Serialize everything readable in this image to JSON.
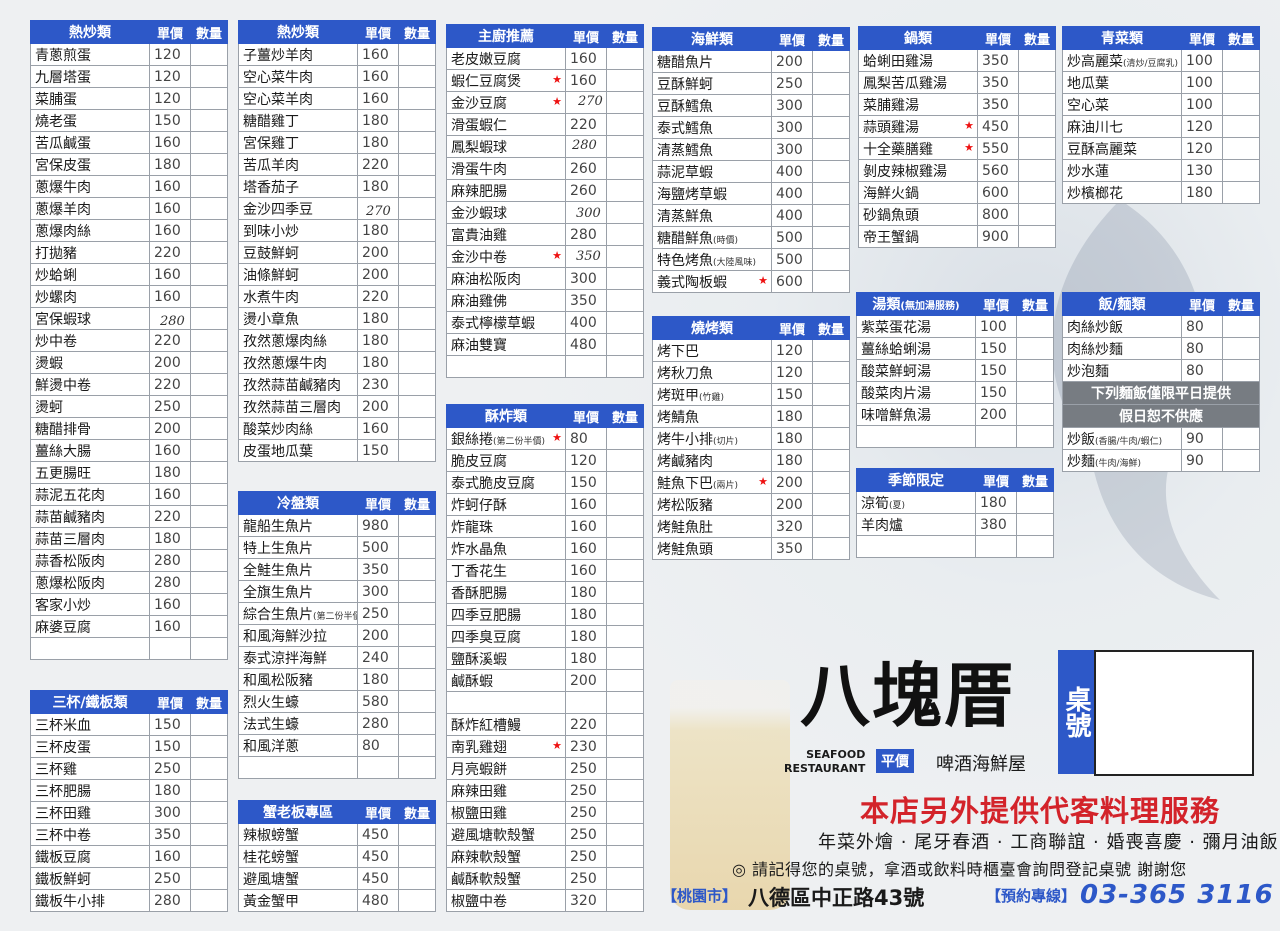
{
  "t_stirfry1": {
    "header": {
      "name": "熱炒類",
      "price": "單價",
      "qty": "數量"
    },
    "rows": [
      [
        "青蔥煎蛋",
        "120"
      ],
      [
        "九層塔蛋",
        "120"
      ],
      [
        "菜脯蛋",
        "120"
      ],
      [
        "燒老蛋",
        "150"
      ],
      [
        "苦瓜鹹蛋",
        "160"
      ],
      [
        "宮保皮蛋",
        "180"
      ],
      [
        "蔥爆牛肉",
        "160"
      ],
      [
        "蔥爆羊肉",
        "160"
      ],
      [
        "蔥爆肉絲",
        "160"
      ],
      [
        "打拋豬",
        "220"
      ],
      [
        "炒蛤蜊",
        "160"
      ],
      [
        "炒螺肉",
        "160"
      ],
      [
        "宮保蝦球",
        ""
      ],
      [
        "炒中卷",
        "220"
      ],
      [
        "燙蝦",
        "200"
      ],
      [
        "鮮燙中卷",
        "220"
      ],
      [
        "燙蚵",
        "250"
      ],
      [
        "糖醋排骨",
        "200"
      ],
      [
        "薑絲大腸",
        "160"
      ],
      [
        "五更腸旺",
        "180"
      ],
      [
        "蒜泥五花肉",
        "160"
      ],
      [
        "蒜苗鹹豬肉",
        "220"
      ],
      [
        "蒜苗三層肉",
        "180"
      ],
      [
        "蒜香松阪肉",
        "280"
      ],
      [
        "蔥爆松阪肉",
        "280"
      ],
      [
        "客家小炒",
        "160"
      ],
      [
        "麻婆豆腐",
        "160"
      ],
      [
        "",
        ""
      ]
    ],
    "hand_price": "280"
  },
  "t_stirfry2": {
    "header": {
      "name": "熱炒類",
      "price": "單價",
      "qty": "數量"
    },
    "rows": [
      [
        "子薑炒羊肉",
        "160"
      ],
      [
        "空心菜牛肉",
        "160"
      ],
      [
        "空心菜羊肉",
        "160"
      ],
      [
        "糖醋雞丁",
        "180"
      ],
      [
        "宮保雞丁",
        "180"
      ],
      [
        "苦瓜羊肉",
        "220"
      ],
      [
        "塔香茄子",
        "180"
      ],
      [
        "金沙四季豆",
        ""
      ],
      [
        "到味小炒",
        "180"
      ],
      [
        "豆鼓鮮蚵",
        "200"
      ],
      [
        "油條鮮蚵",
        "200"
      ],
      [
        "水煮牛肉",
        "220"
      ],
      [
        "燙小章魚",
        "180"
      ],
      [
        "孜然蔥爆肉絲",
        "180"
      ],
      [
        "孜然蔥爆牛肉",
        "180"
      ],
      [
        "孜然蒜苗鹹豬肉",
        "230"
      ],
      [
        "孜然蒜苗三層肉",
        "200"
      ],
      [
        "酸菜炒肉絲",
        "160"
      ],
      [
        "皮蛋地瓜葉",
        "150"
      ]
    ],
    "hand_price": "270"
  },
  "t_cold": {
    "header": {
      "name": "冷盤類",
      "price": "單價",
      "qty": "數量"
    },
    "rows": [
      [
        "龍船生魚片",
        "980"
      ],
      [
        "特上生魚片",
        "500"
      ],
      [
        "全鮭生魚片",
        "350"
      ],
      [
        "全旗生魚片",
        "300"
      ],
      [
        "綜合生魚片",
        "250"
      ],
      [
        "和風海鮮沙拉",
        "200"
      ],
      [
        "泰式涼拌海鮮",
        "240"
      ],
      [
        "和風松阪豬",
        "180"
      ],
      [
        "烈火生蠔",
        "580"
      ],
      [
        "法式生蠔",
        "280"
      ],
      [
        "和風洋蔥",
        "80"
      ],
      [
        "",
        ""
      ]
    ],
    "note": "(第二份半價)"
  },
  "t_crab": {
    "header": {
      "name": "蟹老板專區",
      "price": "單價",
      "qty": "數量"
    },
    "rows": [
      [
        "辣椒螃蟹",
        "450"
      ],
      [
        "桂花螃蟹",
        "450"
      ],
      [
        "避風塘蟹",
        "450"
      ],
      [
        "黃金蟹甲",
        "480"
      ]
    ]
  },
  "t_sanbei": {
    "header": {
      "name": "三杯/鐵板類",
      "price": "單價",
      "qty": "數量"
    },
    "rows": [
      [
        "三杯米血",
        "150"
      ],
      [
        "三杯皮蛋",
        "150"
      ],
      [
        "三杯雞",
        "250"
      ],
      [
        "三杯肥腸",
        "180"
      ],
      [
        "三杯田雞",
        "300"
      ],
      [
        "三杯中卷",
        "350"
      ],
      [
        "鐵板豆腐",
        "160"
      ],
      [
        "鐵板鮮蚵",
        "250"
      ],
      [
        "鐵板牛小排",
        "280"
      ]
    ]
  },
  "t_chef": {
    "header": {
      "name": "主廚推薦",
      "price": "單價",
      "qty": "數量"
    },
    "rows": [
      [
        "老皮嫩豆腐",
        "160"
      ],
      [
        "蝦仁豆腐煲",
        "160"
      ],
      [
        "金沙豆腐",
        ""
      ],
      [
        "滑蛋蝦仁",
        "220"
      ],
      [
        "鳳梨蝦球",
        ""
      ],
      [
        "滑蛋牛肉",
        "260"
      ],
      [
        "麻辣肥腸",
        "260"
      ],
      [
        "金沙蝦球",
        ""
      ],
      [
        "富貴油雞",
        "280"
      ],
      [
        "金沙中卷",
        ""
      ],
      [
        "麻油松阪肉",
        "300"
      ],
      [
        "麻油雞佛",
        "350"
      ],
      [
        "泰式檸檬草蝦",
        "400"
      ],
      [
        "麻油雙寶",
        "480"
      ],
      [
        "",
        ""
      ]
    ],
    "hand1": "270",
    "hand2": "280",
    "hand3": "300",
    "hand4": "350"
  },
  "t_fried": {
    "header": {
      "name": "酥炸類",
      "price": "單價",
      "qty": "數量"
    },
    "rows": [
      [
        "銀絲捲",
        "80"
      ],
      [
        "脆皮豆腐",
        "120"
      ],
      [
        "泰式脆皮豆腐",
        "150"
      ],
      [
        "炸蚵仔酥",
        "160"
      ],
      [
        "炸龍珠",
        "160"
      ],
      [
        "炸水晶魚",
        "160"
      ],
      [
        "丁香花生",
        "160"
      ],
      [
        "香酥肥腸",
        "180"
      ],
      [
        "四季豆肥腸",
        "180"
      ],
      [
        "四季臭豆腐",
        "180"
      ],
      [
        "鹽酥溪蝦",
        "180"
      ],
      [
        "鹹酥蝦",
        "200"
      ],
      [
        "",
        ""
      ],
      [
        "酥炸紅槽鰻",
        "220"
      ],
      [
        "南乳雞翅",
        "230"
      ],
      [
        "月亮蝦餅",
        "250"
      ],
      [
        "麻辣田雞",
        "250"
      ],
      [
        "椒鹽田雞",
        "250"
      ],
      [
        "避風塘軟殼蟹",
        "250"
      ],
      [
        "麻辣軟殼蟹",
        "250"
      ],
      [
        "鹹酥軟殼蟹",
        "250"
      ],
      [
        "椒鹽中卷",
        "320"
      ]
    ],
    "note": "(第二份半價)"
  },
  "t_seafood": {
    "header": {
      "name": "海鮮類",
      "price": "單價",
      "qty": "數量"
    },
    "rows": [
      [
        "糖醋魚片",
        "200"
      ],
      [
        "豆酥鮮蚵",
        "250"
      ],
      [
        "豆酥鱈魚",
        "300"
      ],
      [
        "泰式鱈魚",
        "300"
      ],
      [
        "清蒸鱈魚",
        "300"
      ],
      [
        "蒜泥草蝦",
        "400"
      ],
      [
        "海鹽烤草蝦",
        "400"
      ],
      [
        "清蒸鮮魚",
        "400"
      ],
      [
        "糖醋鮮魚",
        "500"
      ],
      [
        "特色烤魚",
        "500"
      ],
      [
        "義式陶板蝦",
        "600"
      ]
    ],
    "note_season": "(時價)",
    "note_fish": "(大陸風味)"
  },
  "t_grill": {
    "header": {
      "name": "燒烤類",
      "price": "單價",
      "qty": "數量"
    },
    "rows": [
      [
        "烤下巴",
        "120"
      ],
      [
        "烤秋刀魚",
        "120"
      ],
      [
        "烤斑甲",
        "150"
      ],
      [
        "烤鯖魚",
        "180"
      ],
      [
        "烤牛小排",
        "180"
      ],
      [
        "烤鹹豬肉",
        "180"
      ],
      [
        "鮭魚下巴",
        "200"
      ],
      [
        "烤松阪豬",
        "200"
      ],
      [
        "烤鮭魚肚",
        "320"
      ],
      [
        "烤鮭魚頭",
        "350"
      ]
    ],
    "note_chicken": "(竹雞)",
    "note_cut": "(切片)",
    "note_two": "(兩片)"
  },
  "t_pot": {
    "header": {
      "name": "鍋類",
      "price": "單價",
      "qty": "數量"
    },
    "rows": [
      [
        "蛤蜊田雞湯",
        "350"
      ],
      [
        "鳳梨苦瓜雞湯",
        "350"
      ],
      [
        "菜脯雞湯",
        "350"
      ],
      [
        "蒜頭雞湯",
        "450"
      ],
      [
        "十全藥膳雞",
        "550"
      ],
      [
        "剝皮辣椒雞湯",
        "560"
      ],
      [
        "海鮮火鍋",
        "600"
      ],
      [
        "砂鍋魚頭",
        "800"
      ],
      [
        "帝王蟹鍋",
        "900"
      ]
    ]
  },
  "t_soup": {
    "header": {
      "name": "湯類",
      "sub": "(無加湯服務)",
      "price": "單價",
      "qty": "數量"
    },
    "rows": [
      [
        "紫菜蛋花湯",
        "100"
      ],
      [
        "薑絲蛤蜊湯",
        "150"
      ],
      [
        "酸菜鮮蚵湯",
        "150"
      ],
      [
        "酸菜肉片湯",
        "150"
      ],
      [
        "味噌鮮魚湯",
        "200"
      ],
      [
        "",
        ""
      ]
    ]
  },
  "t_season": {
    "header": {
      "name": "季節限定",
      "price": "單價",
      "qty": "數量"
    },
    "rows": [
      [
        "涼筍",
        "180"
      ],
      [
        "羊肉爐",
        "380"
      ],
      [
        "",
        ""
      ]
    ],
    "note_summer": "(夏)"
  },
  "t_veg": {
    "header": {
      "name": "青菜類",
      "price": "單價",
      "qty": "數量"
    },
    "rows": [
      [
        "炒高麗菜",
        "100"
      ],
      [
        "地瓜葉",
        "100"
      ],
      [
        "空心菜",
        "100"
      ],
      [
        "麻油川七",
        "120"
      ],
      [
        "豆酥高麗菜",
        "120"
      ],
      [
        "炒水蓮",
        "130"
      ],
      [
        "炒檳榔花",
        "180"
      ]
    ],
    "note": "(清炒/豆腐乳)"
  },
  "t_rice": {
    "header": {
      "name": "飯/麵類",
      "price": "單價",
      "qty": "數量"
    },
    "rows": [
      [
        "肉絲炒飯",
        "80"
      ],
      [
        "肉絲炒麵",
        "80"
      ],
      [
        "炒泡麵",
        "80"
      ]
    ],
    "notice1": "下列麵飯僅限平日提供",
    "notice2": "假日恕不供應",
    "rows2": [
      [
        "炒飯",
        "90"
      ],
      [
        "炒麵",
        "90"
      ]
    ],
    "note_fan": "(香腸/牛肉/蝦仁)",
    "note_mian": "(牛肉/海鮮)"
  },
  "brand": {
    "logo": "八塊厝",
    "seafood_en": "SEAFOOD",
    "restaurant_en": "RESTAURANT",
    "cheap": "平價",
    "beer": "啤酒海鮮屋",
    "table_no": "桌號",
    "service": "本店另外提供代客料理服務",
    "events": "年菜外燴 · 尾牙春酒 · 工商聯誼 · 婚喪喜慶 · 彌月油飯",
    "reminder": "◎ 請記得您的桌號，拿酒或飲料時櫃臺會詢問登記桌號 謝謝您",
    "city": "【桃園市】",
    "address": "八德區中正路43號",
    "hotline_label": "【預約專線】",
    "phone": "03-365 3116"
  },
  "colors": {
    "header_blue": "#2d58c8",
    "star_red": "#e11111",
    "service_red": "#d3232a"
  }
}
